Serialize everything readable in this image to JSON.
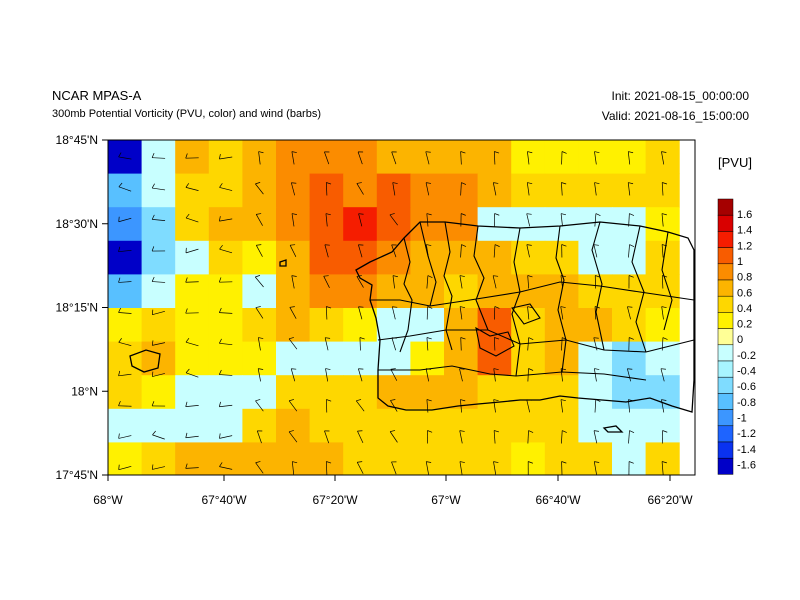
{
  "header": {
    "title": "NCAR MPAS-A",
    "subtitle": "300mb Potential Vorticity (PVU, color) and wind (barbs)",
    "init": "Init: 2021-08-15_00:00:00",
    "valid": "Valid: 2021-08-16_15:00:00"
  },
  "colorbar": {
    "unit_label": "[PVU]",
    "labels": [
      "1.6",
      "1.4",
      "1.2",
      "1",
      "0.8",
      "0.6",
      "0.4",
      "0.2",
      "0",
      "-0.2",
      "-0.4",
      "-0.6",
      "-0.8",
      "-1",
      "-1.2",
      "-1.4",
      "-1.6"
    ],
    "colors": [
      "#a50000",
      "#d90000",
      "#f51d00",
      "#f85c00",
      "#fb8c00",
      "#fcb400",
      "#fed700",
      "#fff100",
      "#ffff96",
      "#c8ffff",
      "#a8f5ff",
      "#7fdcff",
      "#58c0ff",
      "#3c96ff",
      "#1e64ff",
      "#0a32f0",
      "#0000c8"
    ]
  },
  "axes": {
    "lat_labels": [
      "18°45'N",
      "18°30'N",
      "18°15'N",
      "18°N",
      "17°45'N"
    ],
    "lon_labels": [
      "68°W",
      "67°40'W",
      "67°20'W",
      "67°W",
      "66°40'W",
      "66°20'W"
    ],
    "lat_range": [
      17.75,
      18.75
    ],
    "lon_range": [
      -68.0,
      -66.2533
    ]
  },
  "chart_data": {
    "type": "heatmap",
    "variable": "300mb Potential Vorticity (PVU)",
    "rows": 10,
    "cols": 17,
    "cells": [
      [
        "#0000c8",
        "#c8ffff",
        "#fcb400",
        "#fed700",
        "#fcb400",
        "#fb8c00",
        "#fb8c00",
        "#fb8c00",
        "#fcb400",
        "#fcb400",
        "#fcb400",
        "#fcb400",
        "#fff100",
        "#fff100",
        "#fff100",
        "#fff100",
        "#fed700"
      ],
      [
        "#58c0ff",
        "#c8ffff",
        "#fed700",
        "#fed700",
        "#fcb400",
        "#fb8c00",
        "#f85c00",
        "#fb8c00",
        "#f85c00",
        "#fb8c00",
        "#fb8c00",
        "#fcb400",
        "#fed700",
        "#fed700",
        "#fed700",
        "#fed700",
        "#fed700"
      ],
      [
        "#3c96ff",
        "#7fdcff",
        "#fed700",
        "#fcb400",
        "#fcb400",
        "#fb8c00",
        "#f85c00",
        "#f51d00",
        "#f85c00",
        "#fb8c00",
        "#fb8c00",
        "#c8ffff",
        "#c8ffff",
        "#c8ffff",
        "#c8ffff",
        "#c8ffff",
        "#fff100"
      ],
      [
        "#0000c8",
        "#7fdcff",
        "#c8ffff",
        "#fed700",
        "#fff100",
        "#fcb400",
        "#f85c00",
        "#f85c00",
        "#fb8c00",
        "#fcb400",
        "#fcb400",
        "#fcb400",
        "#fed700",
        "#fed700",
        "#c8ffff",
        "#c8ffff",
        "#fed700"
      ],
      [
        "#58c0ff",
        "#c8ffff",
        "#fff100",
        "#fff100",
        "#c8ffff",
        "#fcb400",
        "#fb8c00",
        "#fb8c00",
        "#fcb400",
        "#fcb400",
        "#fed700",
        "#fcb400",
        "#fcb400",
        "#fcb400",
        "#fed700",
        "#fed700",
        "#fed700"
      ],
      [
        "#fff100",
        "#fed700",
        "#fff100",
        "#fff100",
        "#fed700",
        "#fcb400",
        "#fed700",
        "#fff100",
        "#c8ffff",
        "#c8ffff",
        "#fcb400",
        "#f85c00",
        "#fed700",
        "#fcb400",
        "#fcb400",
        "#fed700",
        "#fff100"
      ],
      [
        "#fed700",
        "#fcb400",
        "#fff100",
        "#fff100",
        "#fff100",
        "#c8ffff",
        "#c8ffff",
        "#c8ffff",
        "#c8ffff",
        "#fff100",
        "#fcb400",
        "#f85c00",
        "#fed700",
        "#fcb400",
        "#c8ffff",
        "#7fdcff",
        "#c8ffff"
      ],
      [
        "#fed700",
        "#fff100",
        "#c8ffff",
        "#c8ffff",
        "#c8ffff",
        "#fed700",
        "#fed700",
        "#fed700",
        "#fcb400",
        "#fcb400",
        "#fcb400",
        "#fed700",
        "#fed700",
        "#fed700",
        "#c8ffff",
        "#7fdcff",
        "#7fdcff"
      ],
      [
        "#c8ffff",
        "#c8ffff",
        "#c8ffff",
        "#c8ffff",
        "#fed700",
        "#fcb400",
        "#fed700",
        "#fed700",
        "#fed700",
        "#fed700",
        "#fed700",
        "#fed700",
        "#fed700",
        "#fed700",
        "#c8ffff",
        "#c8ffff",
        "#c8ffff"
      ],
      [
        "#fff100",
        "#fed700",
        "#fcb400",
        "#fcb400",
        "#fcb400",
        "#fcb400",
        "#fcb400",
        "#fed700",
        "#fed700",
        "#fed700",
        "#fed700",
        "#fed700",
        "#fff100",
        "#fed700",
        "#fed700",
        "#c8ffff",
        "#fed700"
      ]
    ],
    "bottom_strip": [
      "#fed700",
      "#fed700",
      "#fcb400",
      "#fed700",
      "#fed700",
      "#fcb400",
      "#fcb400",
      "#fed700",
      "#fed700",
      "#fed700",
      "#fed700",
      "#fed700",
      "#fed700",
      "#fed700",
      "#fed700",
      "#fed700",
      "#fed700"
    ],
    "wind_barbs_rows": 11,
    "wind_barbs_cols": 17
  }
}
